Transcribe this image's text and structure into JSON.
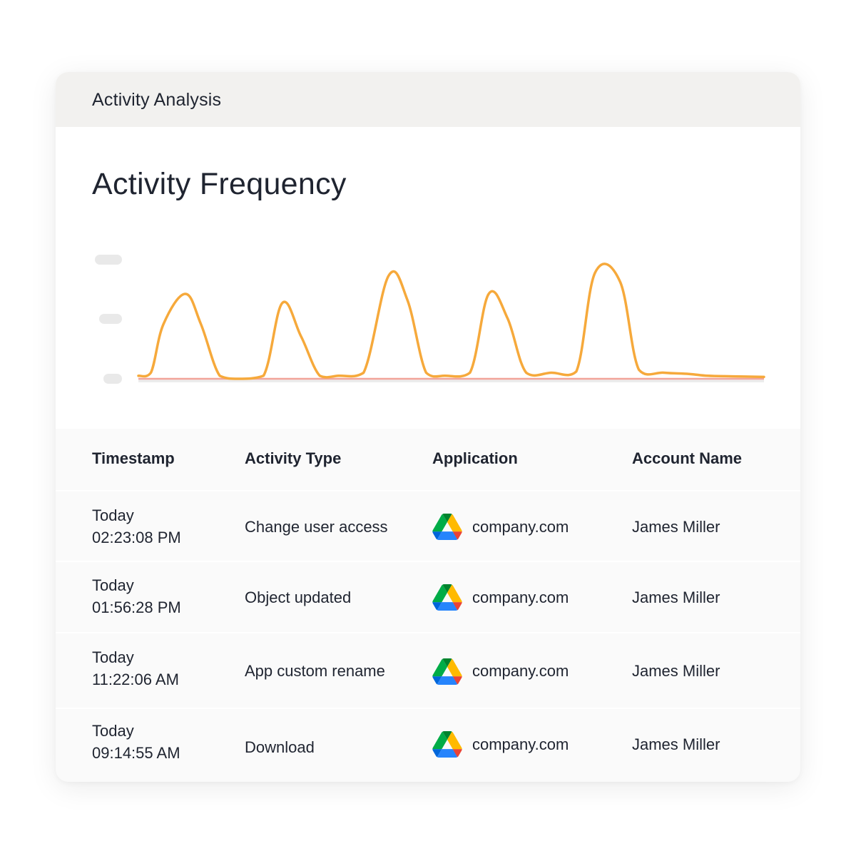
{
  "card": {
    "header_title": "Activity Analysis"
  },
  "section_title": "Activity Frequency",
  "chart_data": {
    "type": "line",
    "title": "Activity Frequency",
    "xlabel": "",
    "ylabel": "",
    "x": [
      0,
      2,
      4,
      7.5,
      10,
      13,
      16,
      20,
      23,
      26,
      29,
      32,
      36,
      40,
      43,
      46,
      49,
      53,
      56,
      59,
      62,
      66,
      70,
      73,
      77,
      80,
      84,
      88,
      91,
      95,
      100
    ],
    "series": [
      {
        "color": "#f6a93b",
        "values": [
          0.05,
          0.1,
          0.9,
          1.4,
          0.9,
          0.05,
          0.0,
          0.05,
          1.25,
          0.7,
          0.05,
          0.05,
          0.1,
          1.7,
          1.3,
          0.1,
          0.05,
          0.1,
          1.4,
          1.0,
          0.1,
          0.1,
          0.12,
          1.75,
          1.6,
          0.15,
          0.1,
          0.08,
          0.05,
          0.04,
          0.03
        ]
      }
    ],
    "baseline_color": "#f2a49a",
    "grid": false,
    "legend": "none",
    "ylim": [
      0,
      2
    ]
  },
  "table": {
    "headers": [
      "Timestamp",
      "Activity Type",
      "Application",
      "Account Name"
    ],
    "rows": [
      {
        "day": "Today",
        "time": "02:23:08 PM",
        "activity": "Change user access",
        "app": "company.com",
        "app_icon": "google-drive-icon",
        "account": "James Miller"
      },
      {
        "day": "Today",
        "time": "01:56:28 PM",
        "activity": "Object updated",
        "app": "company.com",
        "app_icon": "google-drive-icon",
        "account": "James Miller"
      },
      {
        "day": "Today",
        "time": "11:22:06 AM",
        "activity": "App custom rename",
        "app": "company.com",
        "app_icon": "google-drive-icon",
        "account": "James Miller"
      },
      {
        "day": "Today",
        "time": "09:14:55 AM",
        "activity": "Download",
        "app": "company.com",
        "app_icon": "google-drive-icon",
        "account": "James Miller"
      }
    ]
  },
  "colors": {
    "header_bg": "#f2f1ef",
    "line": "#f6a93b",
    "baseline": "#f2a49a",
    "drive_green": "#1fa463",
    "drive_yellow": "#ffd04b",
    "drive_blue": "#4688f4"
  }
}
